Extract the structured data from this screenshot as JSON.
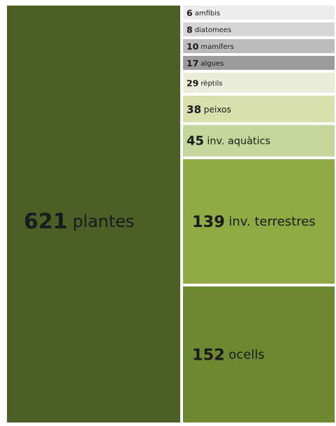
{
  "chart_data": {
    "type": "treemap",
    "categories": [
      "plantes",
      "amfibis",
      "diatomees",
      "mamífers",
      "algues",
      "rèptils",
      "peixos",
      "inv. aquàtics",
      "inv. terrestres",
      "ocells"
    ],
    "values": [
      621,
      6,
      8,
      10,
      17,
      29,
      38,
      45,
      139,
      152
    ],
    "colors": [
      "#4d5e27",
      "#ececec",
      "#d6d6d6",
      "#bcbcbc",
      "#9b9b9b",
      "#e9eed8",
      "#d6e1ad",
      "#c6d69a",
      "#8fa944",
      "#6d8830"
    ]
  }
}
